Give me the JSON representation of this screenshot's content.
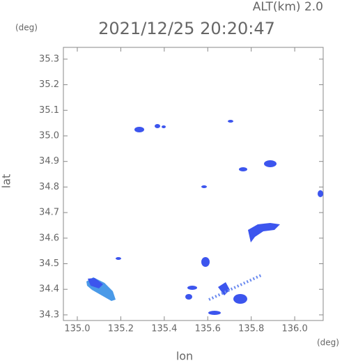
{
  "chart_data": {
    "type": "map",
    "title": "2021/12/25 20:20:47",
    "subtitle": "ALT(km) 2.0",
    "x_label": "lon",
    "y_label": "lat",
    "x_unit": "(deg)",
    "y_unit": "(deg)",
    "xlim": [
      134.936,
      136.131
    ],
    "ylim": [
      34.278,
      35.346
    ],
    "xticks": [
      {
        "value": 135,
        "label": "135.0"
      },
      135.2,
      135.4,
      135.6,
      135.8,
      {
        "value": 136,
        "label": "136.0"
      }
    ],
    "yticks": [
      {
        "value": 34.3,
        "label": "34.3"
      },
      34.4,
      34.5,
      34.6,
      34.7,
      34.8,
      34.9,
      {
        "value": 35,
        "label": "35.0"
      },
      35.1,
      35.2,
      35.3
    ]
  }
}
